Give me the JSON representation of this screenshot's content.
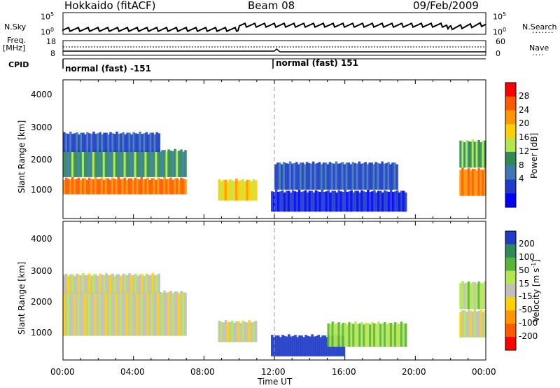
{
  "header": {
    "station": "Hokkaido (fitACF)",
    "beam": "Beam 08",
    "date": "09/Feb/2009"
  },
  "top_panels": {
    "nsky_label": "N.Sky",
    "nsearch_label": "N.Search",
    "nsky_ticks": [
      "10^5",
      "10^0"
    ],
    "freq_label": "Freq.",
    "freq_unit": "[MHz]",
    "freq_ticks": [
      "18",
      "8"
    ],
    "nave_label": "Nave",
    "nave_ticks": [
      "60",
      "0"
    ],
    "cpid_label": "CPID",
    "cpid_modes": [
      "normal (fast) -151",
      "normal (fast) 151"
    ]
  },
  "x_axis": {
    "label": "Time UT",
    "ticks": [
      "00:00",
      "04:00",
      "08:00",
      "12:00",
      "16:00",
      "20:00",
      "00:00"
    ]
  },
  "power_panel": {
    "ylabel": "Slant Range [km]",
    "yticks": [
      "4000",
      "3000",
      "2000",
      "1000"
    ],
    "cbar_label": "Power [dB]",
    "cbar_ticks": [
      "28",
      "24",
      "20",
      "16",
      "12",
      "8",
      "4"
    ],
    "cbar_colors": [
      "#ff0000",
      "#ff5a00",
      "#ff9600",
      "#ffd000",
      "#b4e650",
      "#2e8b57",
      "#3c78b4",
      "#1e3cc8",
      "#0000ff"
    ]
  },
  "velocity_panel": {
    "ylabel": "Slant Range [km]",
    "yticks": [
      "4000",
      "3000",
      "2000",
      "1000"
    ],
    "cbar_label": "Velocity [m s^-1]",
    "cbar_ticks": [
      "200",
      "100",
      "50",
      "15",
      "-15",
      "-50",
      "-100",
      "-200"
    ],
    "cbar_colors": [
      "#1e3cc8",
      "#2e8b57",
      "#5ab43c",
      "#b4e650",
      "#c0c0b8",
      "#ffd000",
      "#ff9600",
      "#ff5a00",
      "#ff0000"
    ]
  },
  "chart_data": [
    {
      "type": "heatmap",
      "title": "Power",
      "xlabel": "Time UT",
      "ylabel": "Slant Range [km]",
      "xlim": [
        0,
        24
      ],
      "ylim": [
        180,
        4600
      ],
      "colorbar": {
        "label": "Power [dB]",
        "range": [
          0,
          32
        ]
      },
      "regions": [
        {
          "t0": 0.0,
          "t1": 7.0,
          "r0": 950,
          "r1": 1500,
          "value": 26
        },
        {
          "t0": 0.0,
          "t1": 7.0,
          "r0": 1500,
          "r1": 2400,
          "value": 12
        },
        {
          "t0": 0.0,
          "t1": 5.5,
          "r0": 2300,
          "r1": 2950,
          "value": 6
        },
        {
          "t0": 8.8,
          "t1": 11.0,
          "r0": 750,
          "r1": 1450,
          "value": 20
        },
        {
          "t0": 11.8,
          "t1": 19.5,
          "r0": 400,
          "r1": 1100,
          "value": 4
        },
        {
          "t0": 12.0,
          "t1": 19.0,
          "r0": 1100,
          "r1": 2000,
          "value": 6
        },
        {
          "t0": 22.5,
          "t1": 24.0,
          "r0": 900,
          "r1": 1800,
          "value": 24
        },
        {
          "t0": 22.5,
          "t1": 24.0,
          "r0": 1800,
          "r1": 2700,
          "value": 14
        }
      ]
    },
    {
      "type": "heatmap",
      "title": "Velocity",
      "xlabel": "Time UT",
      "ylabel": "Slant Range [km]",
      "xlim": [
        0,
        24
      ],
      "ylim": [
        180,
        4600
      ],
      "colorbar": {
        "label": "Velocity [m s^-1]",
        "range": [
          -200,
          200
        ]
      },
      "regions": [
        {
          "t0": 0.0,
          "t1": 7.0,
          "r0": 950,
          "r1": 2400,
          "value": 0
        },
        {
          "t0": 0.0,
          "t1": 5.5,
          "r0": 2300,
          "r1": 2950,
          "value": 0
        },
        {
          "t0": 8.8,
          "t1": 11.0,
          "r0": 750,
          "r1": 1450,
          "value": 0
        },
        {
          "t0": 11.8,
          "t1": 16.0,
          "r0": 300,
          "r1": 1000,
          "value": 200
        },
        {
          "t0": 15.0,
          "t1": 19.5,
          "r0": 600,
          "r1": 1400,
          "value": 60
        },
        {
          "t0": 22.5,
          "t1": 24.0,
          "r0": 900,
          "r1": 1800,
          "value": 0
        },
        {
          "t0": 22.5,
          "t1": 24.0,
          "r0": 1800,
          "r1": 2700,
          "value": 40
        }
      ]
    }
  ]
}
